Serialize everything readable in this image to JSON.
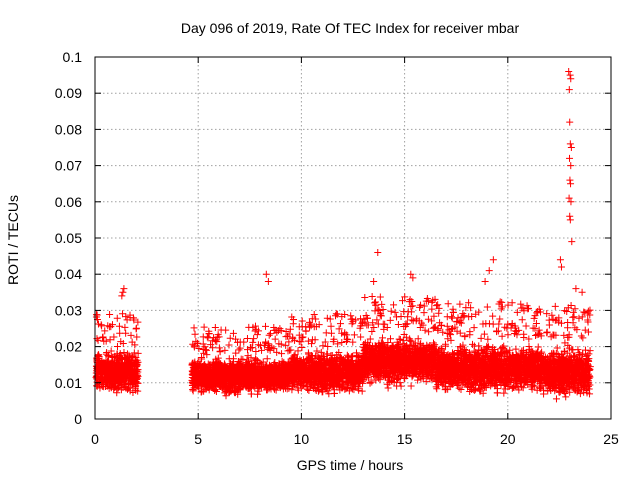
{
  "chart_data": {
    "type": "scatter",
    "title": "Day 096 of 2019, Rate Of TEC Index for receiver mbar",
    "xlabel": "GPS time / hours",
    "ylabel": "ROTI / TECUs",
    "xlim": [
      0,
      25
    ],
    "ylim": [
      0,
      0.1
    ],
    "xticks": [
      0,
      5,
      10,
      15,
      20,
      25
    ],
    "xtick_labels": [
      "0",
      "5",
      "10",
      "15",
      "20",
      "25"
    ],
    "yticks": [
      0,
      0.01,
      0.02,
      0.03,
      0.04,
      0.05,
      0.06,
      0.07,
      0.08,
      0.09,
      0.1
    ],
    "ytick_labels": [
      "0",
      "0.01",
      "0.02",
      "0.03",
      "0.04",
      "0.05",
      "0.06",
      "0.07",
      "0.08",
      "0.09",
      "0.1"
    ],
    "grid": true,
    "marker": "plus",
    "color": "#ff0000",
    "series": [
      {
        "segments": [
          {
            "x_range": [
              0.05,
              2.1
            ],
            "y_center": 0.013,
            "y_spread": 0.007
          },
          {
            "x_range": [
              4.7,
              9.5
            ],
            "y_center": 0.012,
            "y_spread": 0.006
          },
          {
            "x_range": [
              9.5,
              13.0
            ],
            "y_center": 0.013,
            "y_spread": 0.007
          },
          {
            "x_range": [
              13.0,
              16.5
            ],
            "y_center": 0.016,
            "y_spread": 0.008
          },
          {
            "x_range": [
              16.5,
              21.5
            ],
            "y_center": 0.014,
            "y_spread": 0.008
          },
          {
            "x_range": [
              21.5,
              24.0
            ],
            "y_center": 0.013,
            "y_spread": 0.008
          }
        ],
        "notable_points": [
          {
            "x": 1.35,
            "y": 0.035
          },
          {
            "x": 1.4,
            "y": 0.036
          },
          {
            "x": 1.3,
            "y": 0.034
          },
          {
            "x": 1.7,
            "y": 0.028
          },
          {
            "x": 8.3,
            "y": 0.04
          },
          {
            "x": 8.4,
            "y": 0.038
          },
          {
            "x": 13.7,
            "y": 0.046
          },
          {
            "x": 13.5,
            "y": 0.038
          },
          {
            "x": 15.3,
            "y": 0.04
          },
          {
            "x": 15.4,
            "y": 0.039
          },
          {
            "x": 19.3,
            "y": 0.044
          },
          {
            "x": 19.1,
            "y": 0.041
          },
          {
            "x": 18.9,
            "y": 0.038
          },
          {
            "x": 22.55,
            "y": 0.044
          },
          {
            "x": 22.6,
            "y": 0.042
          },
          {
            "x": 22.95,
            "y": 0.096
          },
          {
            "x": 23.02,
            "y": 0.095
          },
          {
            "x": 23.05,
            "y": 0.094
          },
          {
            "x": 22.98,
            "y": 0.091
          },
          {
            "x": 23.0,
            "y": 0.082
          },
          {
            "x": 23.03,
            "y": 0.076
          },
          {
            "x": 23.08,
            "y": 0.075
          },
          {
            "x": 22.99,
            "y": 0.072
          },
          {
            "x": 23.05,
            "y": 0.07
          },
          {
            "x": 23.01,
            "y": 0.066
          },
          {
            "x": 23.04,
            "y": 0.065
          },
          {
            "x": 22.97,
            "y": 0.061
          },
          {
            "x": 23.06,
            "y": 0.06
          },
          {
            "x": 23.0,
            "y": 0.056
          },
          {
            "x": 23.03,
            "y": 0.055
          },
          {
            "x": 23.1,
            "y": 0.049
          },
          {
            "x": 23.3,
            "y": 0.036
          },
          {
            "x": 23.6,
            "y": 0.035
          }
        ]
      }
    ]
  }
}
